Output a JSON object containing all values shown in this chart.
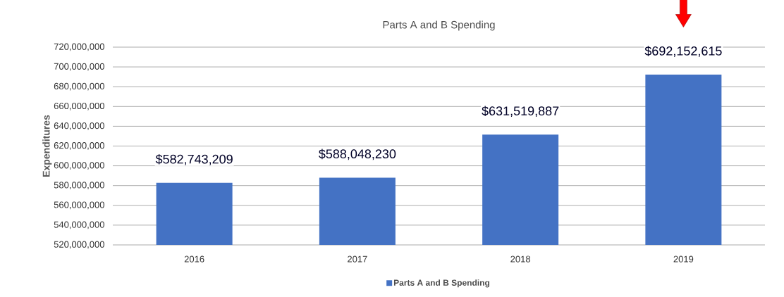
{
  "chart_data": {
    "type": "bar",
    "title": "Parts A and B Spending",
    "ylabel": "Expenditures",
    "categories": [
      "2016",
      "2017",
      "2018",
      "2019"
    ],
    "series": [
      {
        "name": "Parts A and B Spending",
        "color": "#4472c4",
        "values": [
          582743209,
          588048230,
          631519887,
          692152615
        ],
        "value_labels": [
          "$582,743,209",
          "$588,048,230",
          "$631,519,887",
          "$692,152,615"
        ]
      }
    ],
    "ylim": [
      520000000,
      720000000
    ],
    "yticks": [
      {
        "value": 520000000,
        "label": "520,000,000"
      },
      {
        "value": 540000000,
        "label": "540,000,000"
      },
      {
        "value": 560000000,
        "label": "560,000,000"
      },
      {
        "value": 580000000,
        "label": "580,000,000"
      },
      {
        "value": 600000000,
        "label": "600,000,000"
      },
      {
        "value": 620000000,
        "label": "620,000,000"
      },
      {
        "value": 640000000,
        "label": "640,000,000"
      },
      {
        "value": 660000000,
        "label": "660,000,000"
      },
      {
        "value": 680000000,
        "label": "680,000,000"
      },
      {
        "value": 700000000,
        "label": "700,000,000"
      },
      {
        "value": 720000000,
        "label": "720,000,000"
      }
    ],
    "grid": "y",
    "legend": "bottom"
  }
}
